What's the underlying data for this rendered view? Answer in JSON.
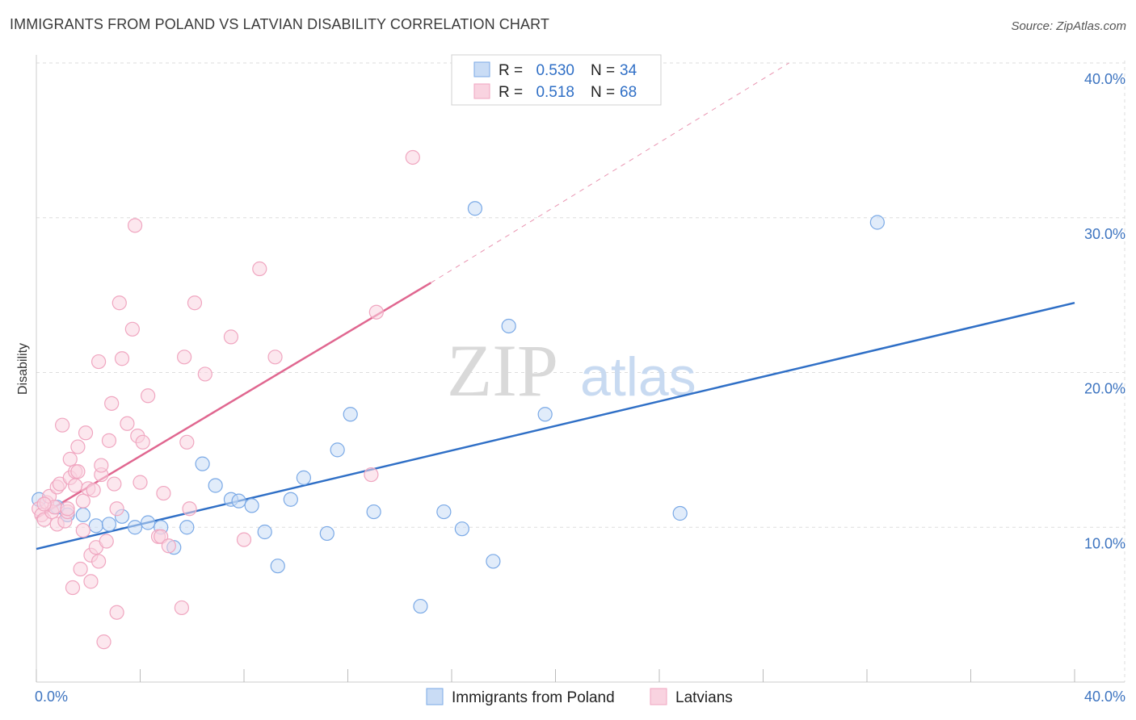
{
  "title": "IMMIGRANTS FROM POLAND VS LATVIAN DISABILITY CORRELATION CHART",
  "source": "Source: ZipAtlas.com",
  "watermark": {
    "zip": "ZIP",
    "atlas": "atlas"
  },
  "chart_data": {
    "type": "scatter",
    "ylabel": "Disability",
    "xlim": [
      0,
      40
    ],
    "ylim": [
      0,
      40
    ],
    "x_tick_labels": [
      "0.0%",
      "40.0%"
    ],
    "y_ticks": [
      10,
      20,
      30,
      40
    ],
    "y_tick_labels": [
      "10.0%",
      "20.0%",
      "30.0%",
      "40.0%"
    ],
    "grid": true,
    "legend": {
      "position": "top-center",
      "entries": [
        {
          "r_label": "R =",
          "r_value": "0.530",
          "n_label": "N =",
          "n_value": "34"
        },
        {
          "r_label": "R =",
          "r_value": "0.518",
          "n_label": "N =",
          "n_value": "68"
        }
      ]
    },
    "series": [
      {
        "name": "Immigrants from Poland",
        "color": "#7aa9e6",
        "fill": "#c9dcf5",
        "line_color": "#2f6fc6",
        "trend": {
          "x0": 0,
          "y0": 8.6,
          "x1": 40,
          "y1": 24.5,
          "dashed_to": null
        },
        "points": [
          [
            0.1,
            11.8
          ],
          [
            0.8,
            11.3
          ],
          [
            1.2,
            10.8
          ],
          [
            1.8,
            10.8
          ],
          [
            2.3,
            10.1
          ],
          [
            2.8,
            10.2
          ],
          [
            3.3,
            10.7
          ],
          [
            3.8,
            10.0
          ],
          [
            4.3,
            10.3
          ],
          [
            4.8,
            10.0
          ],
          [
            5.3,
            8.7
          ],
          [
            5.8,
            10.0
          ],
          [
            6.4,
            14.1
          ],
          [
            6.9,
            12.7
          ],
          [
            7.5,
            11.8
          ],
          [
            7.8,
            11.7
          ],
          [
            8.3,
            11.4
          ],
          [
            8.8,
            9.7
          ],
          [
            9.3,
            7.5
          ],
          [
            9.8,
            11.8
          ],
          [
            10.3,
            13.2
          ],
          [
            11.2,
            9.6
          ],
          [
            11.6,
            15.0
          ],
          [
            12.1,
            17.3
          ],
          [
            13.0,
            11.0
          ],
          [
            14.8,
            4.9
          ],
          [
            15.7,
            11.0
          ],
          [
            16.4,
            9.9
          ],
          [
            16.9,
            30.6
          ],
          [
            17.6,
            7.8
          ],
          [
            18.2,
            23.0
          ],
          [
            19.6,
            17.3
          ],
          [
            24.8,
            10.9
          ],
          [
            32.4,
            29.7
          ]
        ]
      },
      {
        "name": "Latvians",
        "color": "#f0a6c0",
        "fill": "#f9d3e0",
        "line_color": "#e06790",
        "trend": {
          "x0": 0,
          "y0": 10.6,
          "x1": 15.2,
          "y1": 25.8,
          "dashed_to": [
            29,
            40
          ]
        },
        "points": [
          [
            0.1,
            11.2
          ],
          [
            0.2,
            10.8
          ],
          [
            0.3,
            10.5
          ],
          [
            0.4,
            11.6
          ],
          [
            0.5,
            12.0
          ],
          [
            0.6,
            11.0
          ],
          [
            0.7,
            11.3
          ],
          [
            0.8,
            10.2
          ],
          [
            0.8,
            12.6
          ],
          [
            0.9,
            12.8
          ],
          [
            1.0,
            16.6
          ],
          [
            1.1,
            10.4
          ],
          [
            1.2,
            11.0
          ],
          [
            1.3,
            13.2
          ],
          [
            1.3,
            14.4
          ],
          [
            1.4,
            6.1
          ],
          [
            1.5,
            12.7
          ],
          [
            1.5,
            13.6
          ],
          [
            1.6,
            13.6
          ],
          [
            1.6,
            15.2
          ],
          [
            1.7,
            7.3
          ],
          [
            1.8,
            11.7
          ],
          [
            1.8,
            9.8
          ],
          [
            1.9,
            16.1
          ],
          [
            2.0,
            12.5
          ],
          [
            2.1,
            8.2
          ],
          [
            2.1,
            6.5
          ],
          [
            2.2,
            12.4
          ],
          [
            2.3,
            8.7
          ],
          [
            2.4,
            20.7
          ],
          [
            2.4,
            7.8
          ],
          [
            2.5,
            13.4
          ],
          [
            2.5,
            14.0
          ],
          [
            2.6,
            2.6
          ],
          [
            2.7,
            9.1
          ],
          [
            2.8,
            15.6
          ],
          [
            2.9,
            18.0
          ],
          [
            3.0,
            12.8
          ],
          [
            3.1,
            4.5
          ],
          [
            3.1,
            11.2
          ],
          [
            3.2,
            24.5
          ],
          [
            3.3,
            20.9
          ],
          [
            3.5,
            16.7
          ],
          [
            3.7,
            22.8
          ],
          [
            3.8,
            29.5
          ],
          [
            3.9,
            15.9
          ],
          [
            4.0,
            12.9
          ],
          [
            4.1,
            15.5
          ],
          [
            4.3,
            18.5
          ],
          [
            4.7,
            9.4
          ],
          [
            4.8,
            9.4
          ],
          [
            4.9,
            12.2
          ],
          [
            5.1,
            8.8
          ],
          [
            5.6,
            4.8
          ],
          [
            5.7,
            21.0
          ],
          [
            5.8,
            15.5
          ],
          [
            5.9,
            11.2
          ],
          [
            6.1,
            24.5
          ],
          [
            6.5,
            19.9
          ],
          [
            7.5,
            22.3
          ],
          [
            8.0,
            9.2
          ],
          [
            8.6,
            26.7
          ],
          [
            9.2,
            21.0
          ],
          [
            12.9,
            13.4
          ],
          [
            13.1,
            23.9
          ],
          [
            14.5,
            33.9
          ],
          [
            0.3,
            11.5
          ],
          [
            1.2,
            11.2
          ]
        ]
      }
    ]
  }
}
